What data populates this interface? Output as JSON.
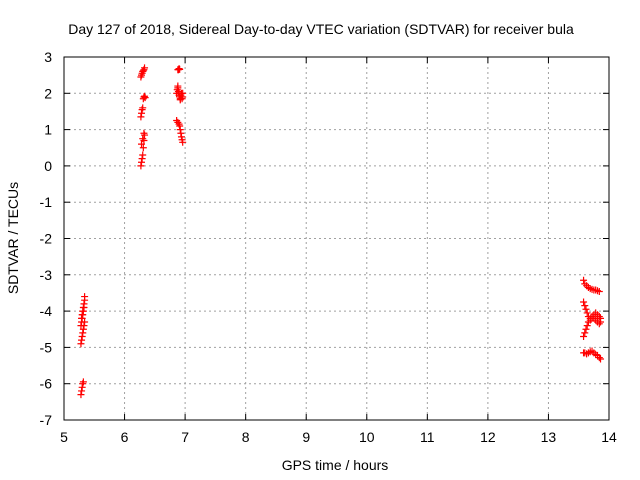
{
  "chart_data": {
    "type": "scatter",
    "title": "Day 127 of 2018, Sidereal Day-to-day VTEC variation (SDTVAR) for receiver bula",
    "xlabel": "GPS time / hours",
    "ylabel": "SDTVAR / TECUs",
    "xlim": [
      5,
      14
    ],
    "ylim": [
      -7,
      3
    ],
    "xticks": [
      "5",
      "6",
      "7",
      "8",
      "9",
      "10",
      "11",
      "12",
      "13",
      "14"
    ],
    "yticks": [
      "-7",
      "-6",
      "-5",
      "-4",
      "-3",
      "-2",
      "-1",
      "0",
      "1",
      "2",
      "3"
    ],
    "grid": true,
    "marker": "plus",
    "color": "#ff0000",
    "series": [
      {
        "x": [
          5.28,
          5.29,
          5.3,
          5.31,
          5.32,
          5.33,
          5.34,
          5.29,
          5.3,
          5.31,
          5.32,
          5.33,
          5.34,
          5.28,
          5.29,
          5.3,
          5.31,
          5.32,
          5.33,
          5.34,
          5.28,
          5.29,
          5.3,
          5.31,
          5.32,
          6.27,
          6.28,
          6.29,
          6.3,
          6.31,
          6.32,
          6.33,
          6.28,
          6.3,
          6.32,
          6.27,
          6.28,
          6.29,
          6.3,
          6.31,
          6.32,
          6.33,
          6.34,
          6.27,
          6.28,
          6.29,
          6.3,
          6.31,
          6.32,
          6.33,
          6.88,
          6.89,
          6.9,
          6.91,
          6.86,
          6.87,
          6.88,
          6.89,
          6.9,
          6.91,
          6.92,
          6.93,
          6.94,
          6.95,
          6.96,
          6.88,
          6.9,
          6.92,
          6.94,
          6.96,
          6.86,
          6.88,
          6.9,
          6.91,
          6.92,
          6.93,
          6.94,
          6.95,
          6.96,
          13.58,
          13.6,
          13.63,
          13.66,
          13.69,
          13.72,
          13.75,
          13.78,
          13.81,
          13.84,
          13.58,
          13.6,
          13.62,
          13.64,
          13.66,
          13.69,
          13.72,
          13.75,
          13.78,
          13.81,
          13.84,
          13.86,
          13.58,
          13.6,
          13.62,
          13.64,
          13.66,
          13.69,
          13.72,
          13.75,
          13.78,
          13.81,
          13.84,
          13.86,
          13.58,
          13.6,
          13.63,
          13.66,
          13.69,
          13.72,
          13.75,
          13.78,
          13.81,
          13.84,
          13.86
        ],
        "y": [
          -4.9,
          -4.8,
          -4.7,
          -4.6,
          -4.5,
          -4.4,
          -4.3,
          -4.2,
          -4.1,
          -4.0,
          -3.9,
          -3.8,
          -3.7,
          -4.4,
          -4.3,
          -4.2,
          -4.1,
          -4.0,
          -3.9,
          -3.6,
          -6.3,
          -6.2,
          -6.1,
          -6.0,
          -5.95,
          0.0,
          0.1,
          0.2,
          0.3,
          0.5,
          0.7,
          0.85,
          0.6,
          0.75,
          0.9,
          1.35,
          1.45,
          1.55,
          1.6,
          1.85,
          1.9,
          1.92,
          1.88,
          2.45,
          2.5,
          2.55,
          2.6,
          2.62,
          2.65,
          2.7,
          2.65,
          2.65,
          2.68,
          2.66,
          2.0,
          2.1,
          2.2,
          2.05,
          1.95,
          1.9,
          1.85,
          1.95,
          2.0,
          1.85,
          1.9,
          2.15,
          2.0,
          1.82,
          1.9,
          2.0,
          1.25,
          1.2,
          1.15,
          1.1,
          1.0,
          0.9,
          0.8,
          0.72,
          0.65,
          -3.15,
          -3.25,
          -3.3,
          -3.35,
          -3.38,
          -3.4,
          -3.42,
          -3.42,
          -3.44,
          -3.46,
          -3.75,
          -3.85,
          -3.95,
          -4.05,
          -4.15,
          -4.2,
          -4.15,
          -4.1,
          -4.05,
          -4.1,
          -4.15,
          -4.2,
          -4.7,
          -4.6,
          -4.5,
          -4.4,
          -4.3,
          -4.25,
          -4.2,
          -4.2,
          -4.25,
          -4.3,
          -4.35,
          -4.3,
          -5.15,
          -5.15,
          -5.18,
          -5.15,
          -5.12,
          -5.1,
          -5.15,
          -5.2,
          -5.22,
          -5.28,
          -5.32
        ]
      }
    ]
  }
}
